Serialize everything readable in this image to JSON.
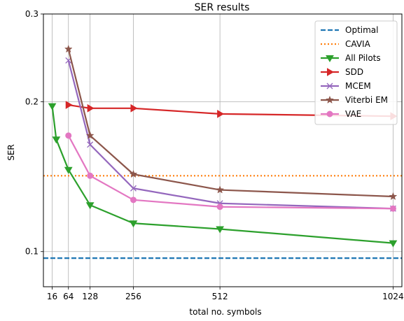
{
  "chart_data": {
    "type": "line",
    "title": "SER results",
    "xlabel": "total no. symbols",
    "ylabel": "SER",
    "x_ticks": [
      16,
      64,
      128,
      256,
      512,
      1024
    ],
    "y_ticks": [
      0.1,
      0.2,
      0.3
    ],
    "y_tick_labels": [
      "0.1",
      "0.2",
      "0.3"
    ],
    "xlim": [
      -10,
      1050
    ],
    "ylim": [
      0.085,
      0.3
    ],
    "y_scale": "log",
    "grid": true,
    "legend_position": "top-right",
    "series": [
      {
        "name": "Optimal",
        "color": "#1f77b4",
        "style": "dashed",
        "marker": "none",
        "x": [
          -10,
          1050
        ],
        "y": [
          0.097,
          0.097
        ]
      },
      {
        "name": "CAVIA",
        "color": "#ff7f0e",
        "style": "dotted",
        "marker": "none",
        "x": [
          -10,
          1050
        ],
        "y": [
          0.142,
          0.142
        ]
      },
      {
        "name": "All Pilots",
        "color": "#2ca02c",
        "style": "solid",
        "marker": "triangle-down",
        "x": [
          16,
          28,
          64,
          128,
          256,
          512,
          1024
        ],
        "y": [
          0.196,
          0.168,
          0.146,
          0.124,
          0.114,
          0.111,
          0.104
        ]
      },
      {
        "name": "SDD",
        "color": "#d62728",
        "style": "solid",
        "marker": "triangle-right",
        "x": [
          64,
          128,
          256,
          512,
          1024
        ],
        "y": [
          0.197,
          0.194,
          0.194,
          0.189,
          0.187
        ]
      },
      {
        "name": "MCEM",
        "color": "#9467bd",
        "style": "solid",
        "marker": "x",
        "x": [
          64,
          128,
          256,
          512,
          1024
        ],
        "y": [
          0.242,
          0.164,
          0.134,
          0.125,
          0.122
        ]
      },
      {
        "name": "Viterbi EM",
        "color": "#8c564b",
        "style": "solid",
        "marker": "star",
        "x": [
          64,
          128,
          256,
          512,
          1024
        ],
        "y": [
          0.255,
          0.171,
          0.143,
          0.133,
          0.129
        ]
      },
      {
        "name": "VAE",
        "color": "#e377c2",
        "style": "solid",
        "marker": "circle",
        "x": [
          64,
          128,
          256,
          512,
          1024
        ],
        "y": [
          0.171,
          0.142,
          0.127,
          0.123,
          0.122
        ]
      }
    ]
  }
}
